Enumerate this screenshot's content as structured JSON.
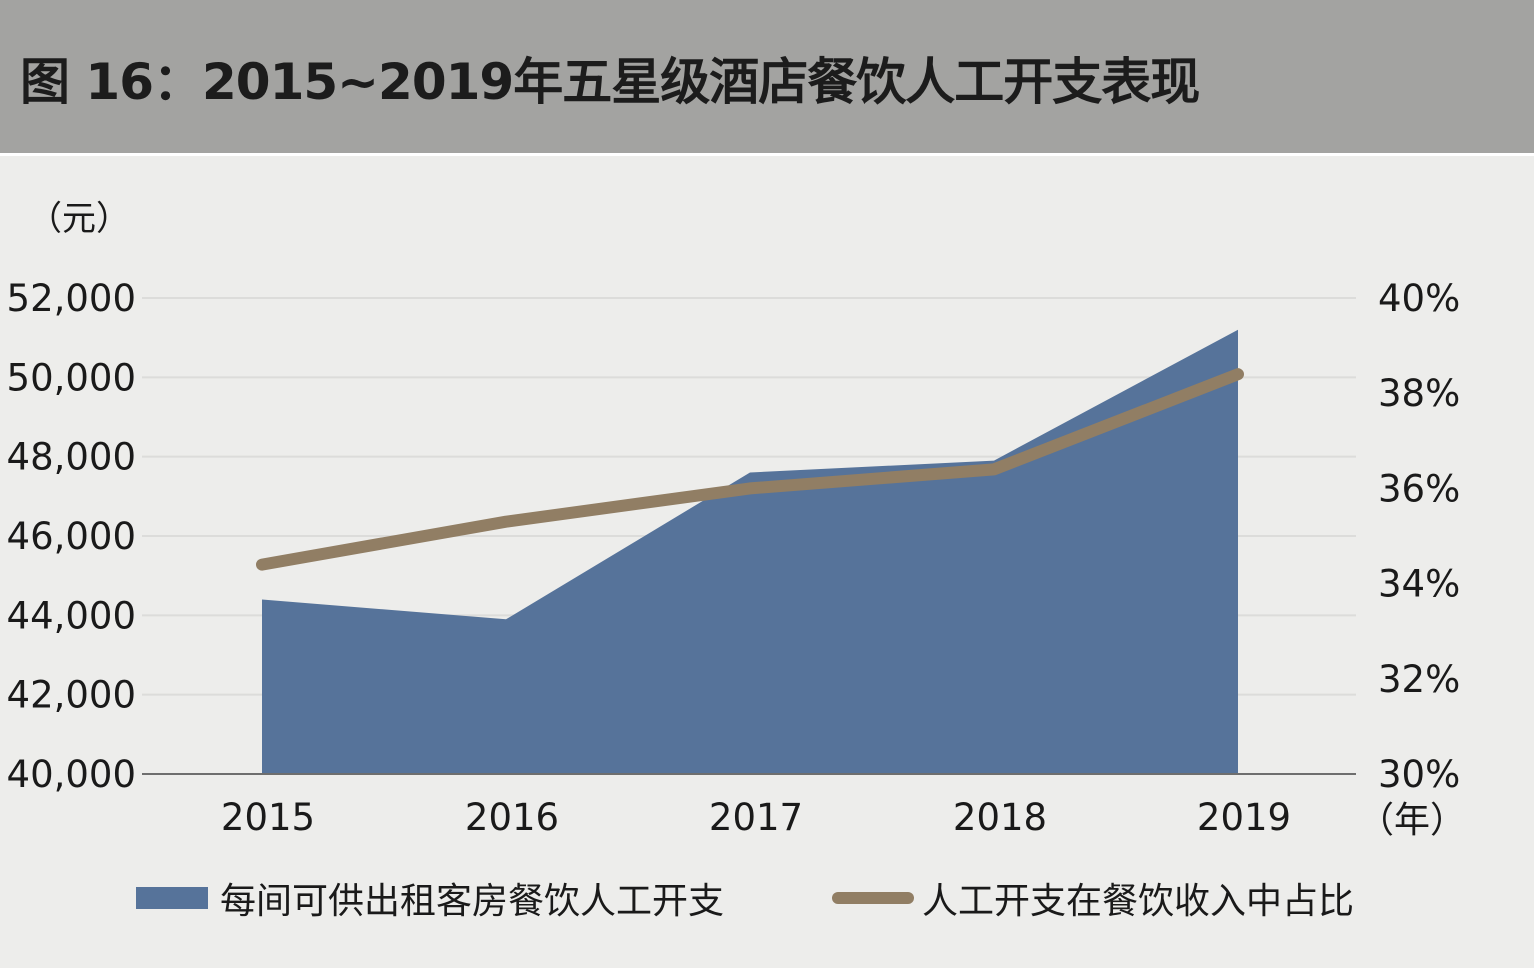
{
  "header": {
    "title": "图 16：2015~2019年五星级酒店餐饮人工开支表现"
  },
  "colors": {
    "area": "#56739a",
    "line": "#917e64",
    "background": "#ededeb",
    "header_bg": "#a3a3a1"
  },
  "chart_data": {
    "type": "area",
    "categories": [
      "2015",
      "2016",
      "2017",
      "2018",
      "2019"
    ],
    "series": [
      {
        "name": "每间可供出租客房餐饮人工开支",
        "type": "area",
        "axis": "left",
        "values": [
          44400,
          43900,
          47600,
          47900,
          51200
        ]
      },
      {
        "name": "人工开支在餐饮收入中占比",
        "type": "line",
        "axis": "right",
        "values": [
          34.4,
          35.3,
          36.0,
          36.4,
          38.4
        ]
      }
    ],
    "y_left": {
      "unit_label": "（元）",
      "min": 40000,
      "max": 52000,
      "ticks": [
        "40,000",
        "42,000",
        "44,000",
        "46,000",
        "48,000",
        "50,000",
        "52,000"
      ]
    },
    "y_right": {
      "min": 30,
      "max": 40,
      "ticks": [
        "30%",
        "32%",
        "34%",
        "36%",
        "38%",
        "40%"
      ]
    },
    "x_unit_label": "（年）",
    "grid": true,
    "legend_position": "bottom"
  }
}
